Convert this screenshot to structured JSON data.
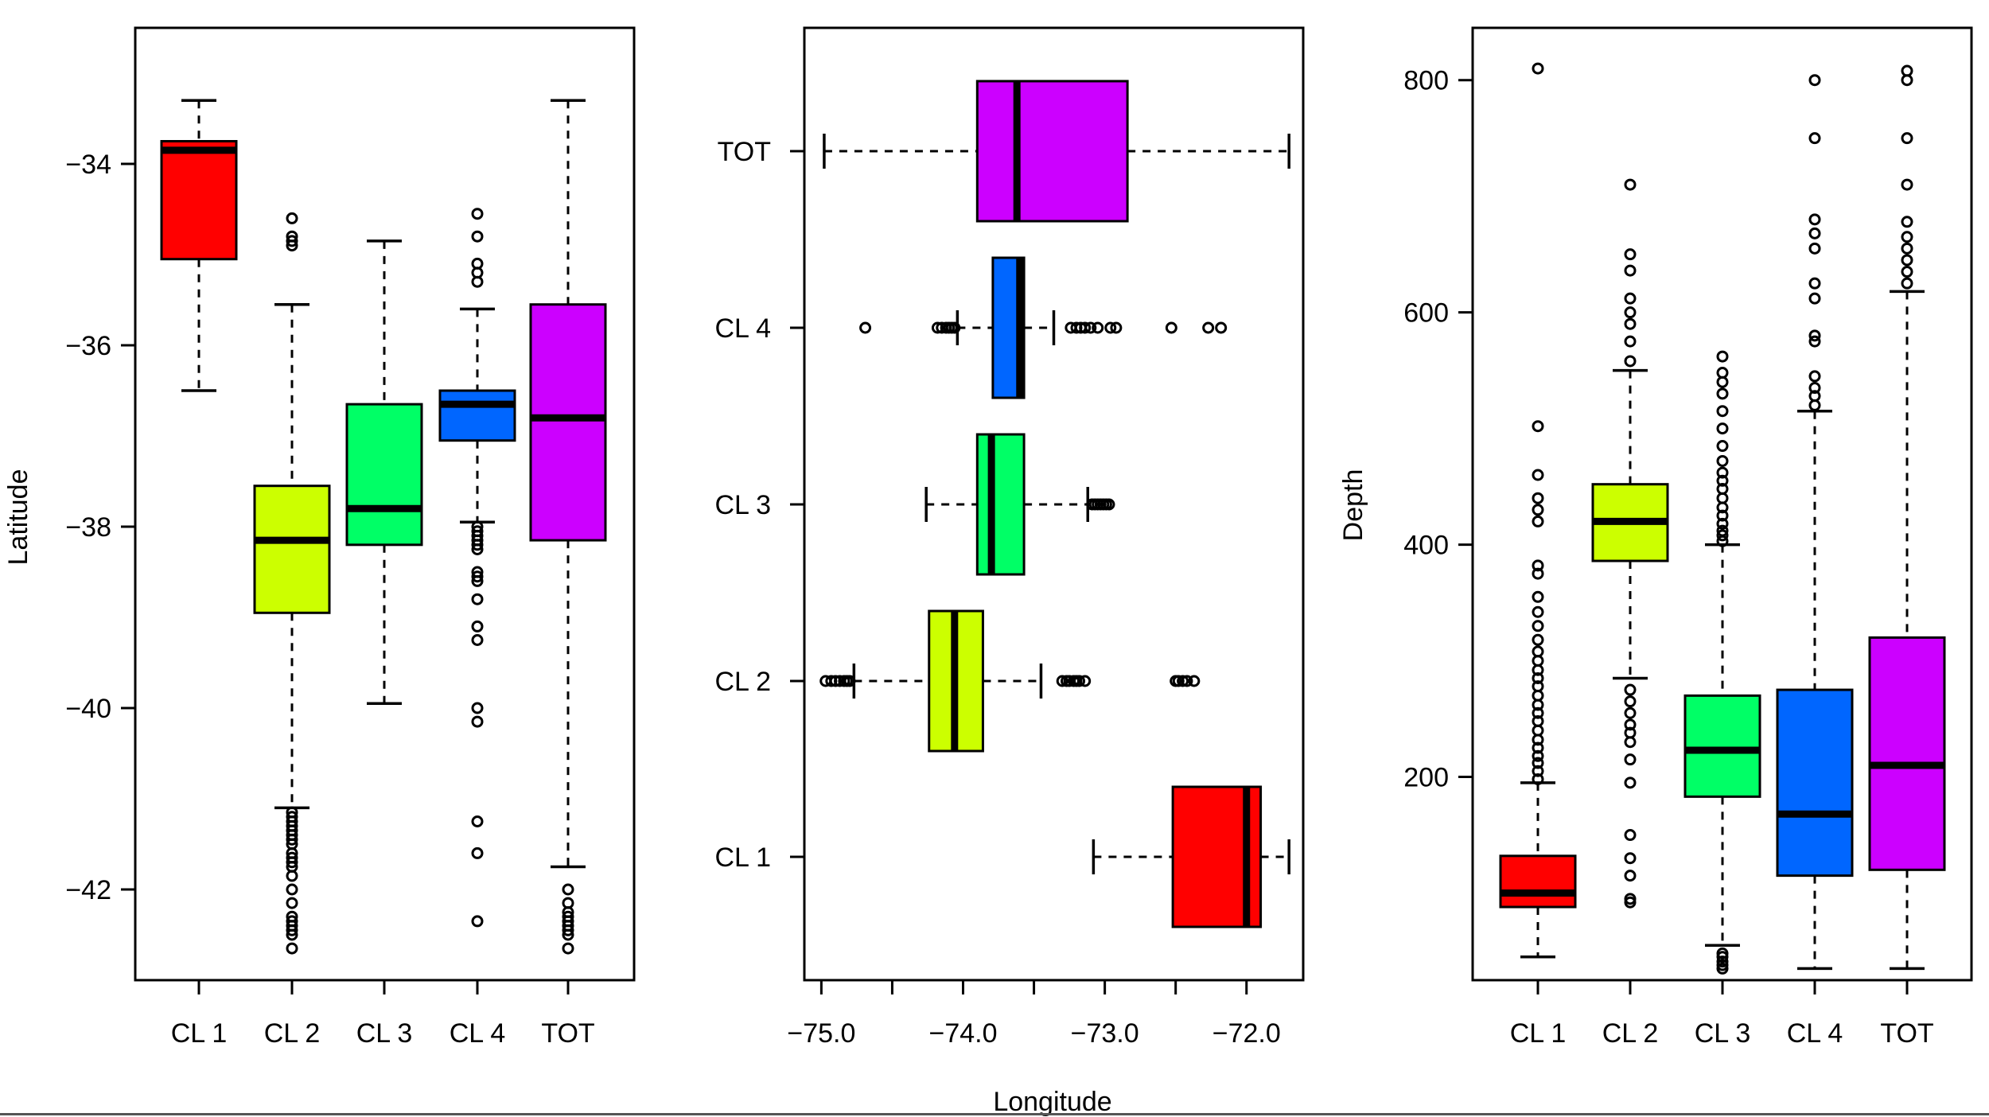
{
  "colors": {
    "CL 1": "#ff0000",
    "CL 2": "#ccff00",
    "CL 3": "#00ff66",
    "CL 4": "#0066ff",
    "TOT": "#cc00ff"
  },
  "chart_data": [
    {
      "type": "boxplot",
      "orientation": "vertical",
      "title": "",
      "xlabel": "",
      "ylabel": "Latitude",
      "ylim": [
        -43.0,
        -32.5
      ],
      "yticks": [
        -34,
        -36,
        -38,
        -40,
        -42
      ],
      "yticklabels": [
        "−34",
        "−36",
        "−38",
        "−40",
        "−42"
      ],
      "categories": [
        "CL 1",
        "CL 2",
        "CL 3",
        "CL 4",
        "TOT"
      ],
      "boxes": [
        {
          "name": "CL 1",
          "whisker_low": -36.5,
          "q1": -35.05,
          "median": -33.85,
          "q3": -33.75,
          "whisker_high": -33.3,
          "outliers": []
        },
        {
          "name": "CL 2",
          "whisker_low": -41.1,
          "q1": -38.95,
          "median": -38.15,
          "q3": -37.55,
          "whisker_high": -35.55,
          "outliers": [
            -34.6,
            -34.8,
            -34.85,
            -34.9,
            -41.15,
            -41.2,
            -41.25,
            -41.3,
            -41.35,
            -41.4,
            -41.45,
            -41.5,
            -41.6,
            -41.65,
            -41.7,
            -41.75,
            -41.85,
            -42.0,
            -42.15,
            -42.3,
            -42.35,
            -42.4,
            -42.45,
            -42.5,
            -42.65
          ]
        },
        {
          "name": "CL 3",
          "whisker_low": -39.95,
          "q1": -38.2,
          "median": -37.8,
          "q3": -36.65,
          "whisker_high": -34.85,
          "outliers": []
        },
        {
          "name": "CL 4",
          "whisker_low": -37.95,
          "q1": -37.05,
          "median": -36.65,
          "q3": -36.5,
          "whisker_high": -35.6,
          "outliers": [
            -34.55,
            -34.8,
            -35.1,
            -35.2,
            -35.3,
            -38.0,
            -38.05,
            -38.1,
            -38.15,
            -38.2,
            -38.25,
            -38.5,
            -38.55,
            -38.6,
            -38.8,
            -39.1,
            -39.25,
            -40.0,
            -40.15,
            -41.25,
            -41.6,
            -42.35
          ]
        },
        {
          "name": "TOT",
          "whisker_low": -41.75,
          "q1": -38.15,
          "median": -36.8,
          "q3": -35.55,
          "whisker_high": -33.3,
          "outliers": [
            -42.0,
            -42.15,
            -42.25,
            -42.3,
            -42.35,
            -42.4,
            -42.45,
            -42.5,
            -42.65
          ]
        }
      ]
    },
    {
      "type": "boxplot",
      "orientation": "horizontal",
      "title": "",
      "xlabel": "Longitude",
      "ylabel": "",
      "xlim": [
        -75.12,
        -71.6
      ],
      "xticks": [
        -75.0,
        -74.5,
        -74.0,
        -73.5,
        -73.0,
        -72.5,
        -72.0
      ],
      "xticklabels": [
        "−75.0",
        "",
        "−74.0",
        "",
        "−73.0",
        "",
        "−72.0"
      ],
      "categories": [
        "CL 1",
        "CL 2",
        "CL 3",
        "CL 4",
        "TOT"
      ],
      "boxes": [
        {
          "name": "CL 1",
          "whisker_low": -73.08,
          "q1": -72.52,
          "median": -72.0,
          "q3": -71.9,
          "whisker_high": -71.7,
          "outliers": []
        },
        {
          "name": "CL 2",
          "whisker_low": -74.77,
          "q1": -74.24,
          "median": -74.06,
          "q3": -73.86,
          "whisker_high": -73.45,
          "outliers": [
            -74.97,
            -74.93,
            -74.9,
            -74.87,
            -74.84,
            -74.82,
            -74.8,
            -73.3,
            -73.27,
            -73.25,
            -73.22,
            -73.2,
            -73.18,
            -73.14,
            -72.5,
            -72.48,
            -72.45,
            -72.42,
            -72.37
          ]
        },
        {
          "name": "CL 3",
          "whisker_low": -74.26,
          "q1": -73.9,
          "median": -73.8,
          "q3": -73.57,
          "whisker_high": -73.12,
          "outliers": [
            -73.09,
            -73.07,
            -73.05,
            -73.03,
            -73.01,
            -72.99,
            -72.97
          ]
        },
        {
          "name": "CL 4",
          "whisker_low": -74.04,
          "q1": -73.79,
          "median": -73.6,
          "q3": -73.57,
          "whisker_high": -73.36,
          "outliers": [
            -74.69,
            -74.18,
            -74.15,
            -74.12,
            -74.1,
            -74.08,
            -74.06,
            -73.24,
            -73.2,
            -73.17,
            -73.14,
            -73.1,
            -73.05,
            -72.96,
            -72.92,
            -72.53,
            -72.27,
            -72.18
          ]
        },
        {
          "name": "TOT",
          "whisker_low": -74.98,
          "q1": -73.9,
          "median": -73.62,
          "q3": -72.84,
          "whisker_high": -71.7,
          "outliers": []
        }
      ]
    },
    {
      "type": "boxplot",
      "orientation": "vertical",
      "title": "",
      "xlabel": "",
      "ylabel": "Depth",
      "ylim": [
        25,
        845
      ],
      "yticks": [
        200,
        400,
        600,
        800
      ],
      "yticklabels": [
        "200",
        "400",
        "600",
        "800"
      ],
      "categories": [
        "CL 1",
        "CL 2",
        "CL 3",
        "CL 4",
        "TOT"
      ],
      "boxes": [
        {
          "name": "CL 1",
          "whisker_low": 45,
          "q1": 88,
          "median": 100,
          "q3": 132,
          "whisker_high": 195,
          "outliers": [
            198,
            205,
            212,
            218,
            225,
            232,
            240,
            248,
            255,
            262,
            270,
            278,
            285,
            292,
            300,
            308,
            318,
            330,
            342,
            355,
            375,
            382,
            420,
            430,
            440,
            460,
            502,
            810
          ]
        },
        {
          "name": "CL 2",
          "whisker_low": 285,
          "q1": 386,
          "median": 420,
          "q3": 452,
          "whisker_high": 550,
          "outliers": [
            92,
            95,
            115,
            130,
            150,
            195,
            215,
            230,
            238,
            245,
            255,
            265,
            275,
            558,
            575,
            590,
            600,
            612,
            636,
            650,
            710
          ]
        },
        {
          "name": "CL 3",
          "whisker_low": 55,
          "q1": 183,
          "median": 223,
          "q3": 270,
          "whisker_high": 400,
          "outliers": [
            35,
            38,
            41,
            45,
            48,
            403,
            408,
            412,
            418,
            425,
            432,
            440,
            448,
            455,
            462,
            472,
            485,
            500,
            515,
            530,
            540,
            548,
            562
          ]
        },
        {
          "name": "CL 4",
          "whisker_low": 35,
          "q1": 115,
          "median": 168,
          "q3": 275,
          "whisker_high": 515,
          "outliers": [
            520,
            528,
            535,
            545,
            575,
            580,
            612,
            625,
            655,
            668,
            680,
            750,
            800
          ]
        },
        {
          "name": "TOT",
          "whisker_low": 35,
          "q1": 120,
          "median": 210,
          "q3": 320,
          "whisker_high": 618,
          "outliers": [
            625,
            635,
            645,
            655,
            665,
            678,
            710,
            750,
            800,
            808
          ]
        }
      ]
    }
  ]
}
